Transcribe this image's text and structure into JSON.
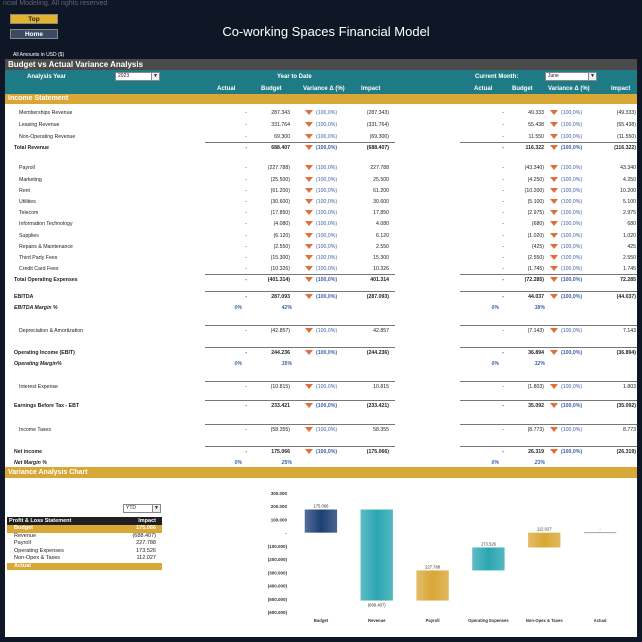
{
  "header": {
    "copyright": "ncial Modeling. All rights reserved",
    "top_button": "Top",
    "home_button": "Home",
    "title": "Co-working Spaces Financial Model",
    "amounts_note": "All Amounts in  USD ($)"
  },
  "section_title": "Budget vs Actual Variance Analysis",
  "controls": {
    "analysis_year_label": "Analysis Year",
    "analysis_year_value": "2023",
    "ytd_label": "Year to Date",
    "current_month_label": "Current Month:",
    "current_month_value": "June"
  },
  "columns": {
    "actual": "Actual",
    "budget": "Budget",
    "variance": "Variance Δ (%)",
    "impact": "Impact",
    "actual2": "Actual",
    "budget2": "Budget",
    "variance2": "Variance Δ (%)",
    "impact2": "Impact"
  },
  "income_statement_label": "Income Statement",
  "rows": [
    {
      "label": "Memberships Revenue",
      "style": "",
      "a1": "-",
      "b1": "287.343",
      "v1": "(100,0%)",
      "i1": "(287.343)",
      "a2": "-",
      "b2": "49.333",
      "v2": "(100,0%)",
      "i2": "(49.333)"
    },
    {
      "label": "Leasing Revenue",
      "style": "",
      "a1": "-",
      "b1": "331.764",
      "v1": "(100,0%)",
      "i1": "(331.764)",
      "a2": "-",
      "b2": "55.438",
      "v2": "(100,0%)",
      "i2": "(55.438)"
    },
    {
      "label": "Non-Operating Revenue",
      "style": "",
      "a1": "-",
      "b1": "69.300",
      "v1": "(100,0%)",
      "i1": "(69.300)",
      "a2": "-",
      "b2": "11.550",
      "v2": "(100,0%)",
      "i2": "(11.550)"
    },
    {
      "label": "Total Revenue",
      "style": "bold",
      "a1": "-",
      "b1": "688.407",
      "v1": "(100,0%)",
      "i1": "(688.407)",
      "a2": "-",
      "b2": "116.322",
      "v2": "(100,0%)",
      "i2": "(116.322)"
    },
    {
      "label": "Payroll",
      "style": "",
      "a1": "-",
      "b1": "(227.788)",
      "v1": "(100,0%)",
      "i1": "227.788",
      "a2": "-",
      "b2": "(43.340)",
      "v2": "(100,0%)",
      "i2": "43.340"
    },
    {
      "label": "Marketing",
      "style": "",
      "a1": "-",
      "b1": "(25.500)",
      "v1": "(100,0%)",
      "i1": "25.500",
      "a2": "-",
      "b2": "(4.250)",
      "v2": "(100,0%)",
      "i2": "4.250"
    },
    {
      "label": "Rent",
      "style": "",
      "a1": "-",
      "b1": "(61.200)",
      "v1": "(100,0%)",
      "i1": "61.200",
      "a2": "-",
      "b2": "(10.200)",
      "v2": "(100,0%)",
      "i2": "10.200"
    },
    {
      "label": "Utilities",
      "style": "",
      "a1": "-",
      "b1": "(30.600)",
      "v1": "(100,0%)",
      "i1": "30.600",
      "a2": "-",
      "b2": "(5.100)",
      "v2": "(100,0%)",
      "i2": "5.100"
    },
    {
      "label": "Telecom",
      "style": "",
      "a1": "-",
      "b1": "(17.850)",
      "v1": "(100,0%)",
      "i1": "17.850",
      "a2": "-",
      "b2": "(2.975)",
      "v2": "(100,0%)",
      "i2": "2.975"
    },
    {
      "label": "Information Technology",
      "style": "",
      "a1": "-",
      "b1": "(4.080)",
      "v1": "(100,0%)",
      "i1": "4.080",
      "a2": "-",
      "b2": "(680)",
      "v2": "(100,0%)",
      "i2": "680"
    },
    {
      "label": "Supplies",
      "style": "",
      "a1": "-",
      "b1": "(6.120)",
      "v1": "(100,0%)",
      "i1": "6.120",
      "a2": "-",
      "b2": "(1.020)",
      "v2": "(100,0%)",
      "i2": "1.020"
    },
    {
      "label": "Repairs & Maintenance",
      "style": "",
      "a1": "-",
      "b1": "(2.550)",
      "v1": "(100,0%)",
      "i1": "2.550",
      "a2": "-",
      "b2": "(425)",
      "v2": "(100,0%)",
      "i2": "425"
    },
    {
      "label": "Third Party Fees",
      "style": "",
      "a1": "-",
      "b1": "(15.300)",
      "v1": "(100,0%)",
      "i1": "15.300",
      "a2": "-",
      "b2": "(2.550)",
      "v2": "(100,0%)",
      "i2": "2.550"
    },
    {
      "label": "Credit Card Fees",
      "style": "",
      "a1": "-",
      "b1": "(10.326)",
      "v1": "(100,0%)",
      "i1": "10.326",
      "a2": "-",
      "b2": "(1.745)",
      "v2": "(100,0%)",
      "i2": "1.745"
    },
    {
      "label": "Total Operating Expenses",
      "style": "bold",
      "a1": "-",
      "b1": "(401.314)",
      "v1": "(100,0%)",
      "i1": "401.314",
      "a2": "-",
      "b2": "(72.285)",
      "v2": "(100,0%)",
      "i2": "72.285"
    },
    {
      "label": "EBITDA",
      "style": "bold",
      "a1": "-",
      "b1": "287.093",
      "v1": "(100,0%)",
      "i1": "(287.093)",
      "a2": "-",
      "b2": "44.037",
      "v2": "(100,0%)",
      "i2": "(44.037)"
    },
    {
      "label": "EBITDA Margin %",
      "style": "ital",
      "m1": "0%",
      "m2": "42%",
      "m3": "0%",
      "m4": "38%"
    },
    {
      "label": "Depreciation & Amortization",
      "style": "",
      "a1": "-",
      "b1": "(42.857)",
      "v1": "(100,0%)",
      "i1": "42.857",
      "a2": "-",
      "b2": "(7.143)",
      "v2": "(100,0%)",
      "i2": "7.143"
    },
    {
      "label": "Operating Income (EBIT)",
      "style": "bold",
      "a1": "-",
      "b1": "244.236",
      "v1": "(100,0%)",
      "i1": "(244.236)",
      "a2": "-",
      "b2": "36.894",
      "v2": "(100,0%)",
      "i2": "(36.894)"
    },
    {
      "label": "Operating Margin%",
      "style": "ital",
      "m1": "0%",
      "m2": "35%",
      "m3": "0%",
      "m4": "32%"
    },
    {
      "label": "Interest Expense",
      "style": "",
      "a1": "-",
      "b1": "(10.815)",
      "v1": "(100,0%)",
      "i1": "10.815",
      "a2": "-",
      "b2": "(1.803)",
      "v2": "(100,0%)",
      "i2": "1.803"
    },
    {
      "label": "Earnings Before Tax - EBT",
      "style": "bold",
      "a1": "-",
      "b1": "233.421",
      "v1": "(100,0%)",
      "i1": "(233.421)",
      "a2": "-",
      "b2": "35.092",
      "v2": "(100,0%)",
      "i2": "(35.092)"
    },
    {
      "label": "Income Taxes",
      "style": "",
      "a1": "-",
      "b1": "(58.355)",
      "v1": "(100,0%)",
      "i1": "58.355",
      "a2": "-",
      "b2": "(8.773)",
      "v2": "(100,0%)",
      "i2": "8.773"
    },
    {
      "label": "Net income",
      "style": "bold",
      "a1": "-",
      "b1": "175.066",
      "v1": "(100,0%)",
      "i1": "(175.066)",
      "a2": "-",
      "b2": "26.319",
      "v2": "(100,0%)",
      "i2": "(26.319)"
    },
    {
      "label": "Net Margin %",
      "style": "ital",
      "m1": "0%",
      "m2": "25%",
      "m3": "0%",
      "m4": "23%"
    }
  ],
  "chart_section_label": "Variance Analysis Chart",
  "period_select": "YTD",
  "pl_table": {
    "header_label": "Profit & Loss Statement",
    "header_value": "Impact",
    "rows": [
      {
        "label": "Budget",
        "value": "175.066",
        "highlight": true
      },
      {
        "label": "Revenue",
        "value": "(688.407)",
        "highlight": false
      },
      {
        "label": "Payroll",
        "value": "227.788",
        "highlight": false
      },
      {
        "label": "Operating Expenses",
        "value": "173.526",
        "highlight": false
      },
      {
        "label": "Non-Opex & Taxes",
        "value": "112.027",
        "highlight": false
      },
      {
        "label": "Actual",
        "value": "",
        "highlight": true
      }
    ]
  },
  "chart_data": {
    "type": "bar",
    "subtype": "waterfall",
    "categories": [
      "Budget",
      "Revenue",
      "Payroll",
      "Operating Expenses",
      "Non-Opex & Taxes",
      "Actual"
    ],
    "values": [
      175066,
      -688407,
      227788,
      173526,
      112027,
      0
    ],
    "data_labels": [
      "175.066",
      "(688.407)",
      "227.788",
      "173.526",
      "112.027",
      "-"
    ],
    "ylim": [
      -600000,
      300000
    ],
    "yticks": [
      "300.000",
      "200.000",
      "100.000",
      "-",
      "(100.000)",
      "(200.000)",
      "(300.000)",
      "(400.000)",
      "(500.000)",
      "(600.000)"
    ],
    "colors": {
      "budget": "#1c3f74",
      "revenue": "#2aa6b2",
      "payroll": "#d9a736",
      "operating_expenses": "#2aa6b2",
      "non_opex": "#d9a736",
      "actual": "#888888"
    }
  }
}
